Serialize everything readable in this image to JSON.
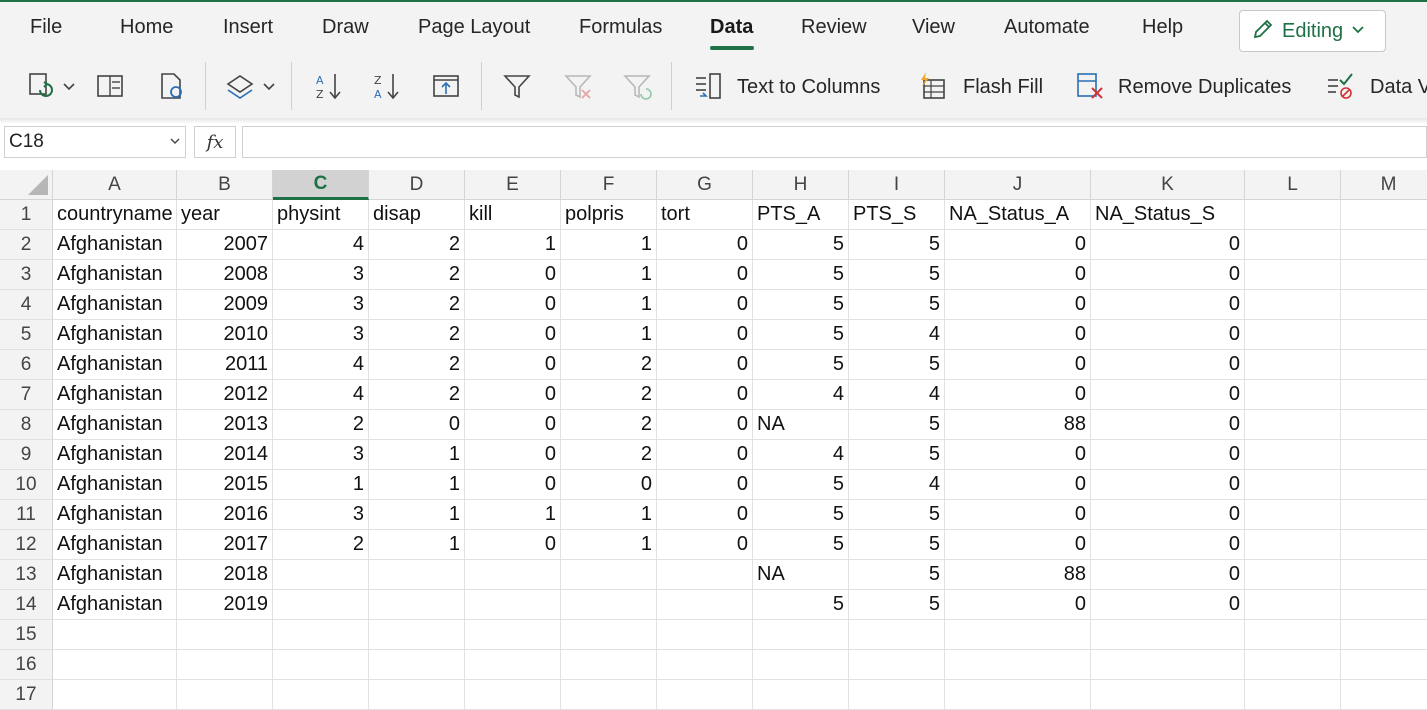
{
  "menu": {
    "tabs": [
      {
        "label": "File"
      },
      {
        "label": "Home"
      },
      {
        "label": "Insert"
      },
      {
        "label": "Draw"
      },
      {
        "label": "Page Layout"
      },
      {
        "label": "Formulas"
      },
      {
        "label": "Data",
        "active": true
      },
      {
        "label": "Review"
      },
      {
        "label": "View"
      },
      {
        "label": "Automate"
      },
      {
        "label": "Help"
      }
    ],
    "editing_label": "Editing"
  },
  "ribbon": {
    "text_to_columns": "Text to Columns",
    "flash_fill": "Flash Fill",
    "remove_duplicates": "Remove Duplicates",
    "data_validation": "Data V"
  },
  "formula_bar": {
    "name_box": "C18",
    "fx_label": "fx",
    "formula": ""
  },
  "sheet": {
    "columns": [
      "A",
      "B",
      "C",
      "D",
      "E",
      "F",
      "G",
      "H",
      "I",
      "J",
      "K",
      "L",
      "M"
    ],
    "selected_column": "C",
    "row_numbers": [
      "1",
      "2",
      "3",
      "4",
      "5",
      "6",
      "7",
      "8",
      "9",
      "10",
      "11",
      "12",
      "13",
      "14",
      "15",
      "16",
      "17"
    ],
    "header_row": [
      "countryname",
      "year",
      "physint",
      "disap",
      "kill",
      "polpris",
      "tort",
      "PTS_A",
      "PTS_S",
      "NA_Status_A",
      "NA_Status_S"
    ],
    "rows": [
      [
        "Afghanistan",
        "2007",
        "4",
        "2",
        "1",
        "1",
        "0",
        "5",
        "5",
        "0",
        "0"
      ],
      [
        "Afghanistan",
        "2008",
        "3",
        "2",
        "0",
        "1",
        "0",
        "5",
        "5",
        "0",
        "0"
      ],
      [
        "Afghanistan",
        "2009",
        "3",
        "2",
        "0",
        "1",
        "0",
        "5",
        "5",
        "0",
        "0"
      ],
      [
        "Afghanistan",
        "2010",
        "3",
        "2",
        "0",
        "1",
        "0",
        "5",
        "4",
        "0",
        "0"
      ],
      [
        "Afghanistan",
        "2011",
        "4",
        "2",
        "0",
        "2",
        "0",
        "5",
        "5",
        "0",
        "0"
      ],
      [
        "Afghanistan",
        "2012",
        "4",
        "2",
        "0",
        "2",
        "0",
        "4",
        "4",
        "0",
        "0"
      ],
      [
        "Afghanistan",
        "2013",
        "2",
        "0",
        "0",
        "2",
        "0",
        "NA",
        "5",
        "88",
        "0"
      ],
      [
        "Afghanistan",
        "2014",
        "3",
        "1",
        "0",
        "2",
        "0",
        "4",
        "5",
        "0",
        "0"
      ],
      [
        "Afghanistan",
        "2015",
        "1",
        "1",
        "0",
        "0",
        "0",
        "5",
        "4",
        "0",
        "0"
      ],
      [
        "Afghanistan",
        "2016",
        "3",
        "1",
        "1",
        "1",
        "0",
        "5",
        "5",
        "0",
        "0"
      ],
      [
        "Afghanistan",
        "2017",
        "2",
        "1",
        "0",
        "1",
        "0",
        "5",
        "5",
        "0",
        "0"
      ],
      [
        "Afghanistan",
        "2018",
        "",
        "",
        "",
        "",
        "",
        "NA",
        "5",
        "88",
        "0"
      ],
      [
        "Afghanistan",
        "2019",
        "",
        "",
        "",
        "",
        "",
        "5",
        "5",
        "0",
        "0"
      ]
    ]
  },
  "colors": {
    "accent": "#1e7145"
  }
}
